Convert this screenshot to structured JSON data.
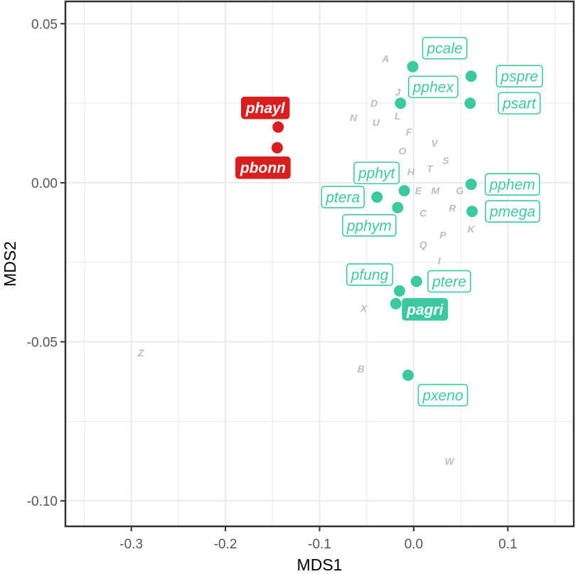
{
  "colors": {
    "teal": "#3dc9a0",
    "red": "#d81e1e",
    "letter_gray": "#bdbdbd",
    "grid": "#ebebeb",
    "panel_border": "#333333"
  },
  "chart_data": {
    "type": "scatter",
    "xlabel": "MDS1",
    "ylabel": "MDS2",
    "xlim": [
      -0.37,
      0.17
    ],
    "ylim": [
      -0.108,
      0.057
    ],
    "x_ticks": [
      {
        "value": -0.3,
        "label": "-0.3"
      },
      {
        "value": -0.2,
        "label": "-0.2"
      },
      {
        "value": -0.1,
        "label": "-0.1"
      },
      {
        "value": 0.0,
        "label": "0.0"
      },
      {
        "value": 0.1,
        "label": "0.1"
      }
    ],
    "y_ticks": [
      {
        "value": 0.05,
        "label": "0.05"
      },
      {
        "value": 0.0,
        "label": "0.00"
      },
      {
        "value": -0.05,
        "label": "-0.05"
      },
      {
        "value": -0.1,
        "label": "-0.10"
      }
    ],
    "grid": true,
    "species": [
      {
        "name": "pcale",
        "x": -0.001,
        "y": 0.0365,
        "group": "teal",
        "style": "outline",
        "dx": 45,
        "dy": -26
      },
      {
        "name": "pspre",
        "x": 0.061,
        "y": 0.0335,
        "group": "teal",
        "style": "outline",
        "dx": 68,
        "dy": 0
      },
      {
        "name": "pphex",
        "x": -0.014,
        "y": 0.025,
        "group": "teal",
        "style": "outline",
        "dx": 46,
        "dy": -23
      },
      {
        "name": "psart",
        "x": 0.06,
        "y": 0.025,
        "group": "teal",
        "style": "outline",
        "dx": 69,
        "dy": 0
      },
      {
        "name": "phayl",
        "x": -0.144,
        "y": 0.0175,
        "group": "red",
        "style": "filled",
        "dx": -18,
        "dy": -27
      },
      {
        "name": "pbonn",
        "x": -0.145,
        "y": 0.011,
        "group": "red",
        "style": "filled",
        "dx": -20,
        "dy": 28
      },
      {
        "name": "pphyt",
        "x": -0.01,
        "y": -0.0025,
        "group": "teal",
        "style": "outline",
        "dx": -39,
        "dy": -25
      },
      {
        "name": "ptera",
        "x": -0.039,
        "y": -0.0045,
        "group": "teal",
        "style": "outline",
        "dx": -48,
        "dy": 0
      },
      {
        "name": "pphem",
        "x": 0.061,
        "y": -0.0005,
        "group": "teal",
        "style": "outline",
        "dx": 58,
        "dy": 0
      },
      {
        "name": "pphym",
        "x": -0.017,
        "y": -0.0078,
        "group": "teal",
        "style": "outline",
        "dx": -40,
        "dy": 25
      },
      {
        "name": "pmega",
        "x": 0.062,
        "y": -0.009,
        "group": "teal",
        "style": "outline",
        "dx": 57,
        "dy": 0
      },
      {
        "name": "pfung",
        "x": -0.015,
        "y": -0.034,
        "group": "teal",
        "style": "outline",
        "dx": -42,
        "dy": -23
      },
      {
        "name": "ptere",
        "x": 0.003,
        "y": -0.031,
        "group": "teal",
        "style": "outline",
        "dx": 46,
        "dy": 0
      },
      {
        "name": "pagri",
        "x": -0.019,
        "y": -0.038,
        "group": "teal",
        "style": "filled",
        "dx": 41,
        "dy": 8
      },
      {
        "name": "pxeno",
        "x": -0.006,
        "y": -0.0605,
        "group": "teal",
        "style": "outline",
        "dx": 49,
        "dy": 28
      }
    ],
    "letters": [
      {
        "label": "A",
        "x": -0.03,
        "y": 0.039
      },
      {
        "label": "J",
        "x": -0.017,
        "y": 0.0285
      },
      {
        "label": "D",
        "x": -0.042,
        "y": 0.025
      },
      {
        "label": "L",
        "x": -0.017,
        "y": 0.021
      },
      {
        "label": "N",
        "x": -0.064,
        "y": 0.0205
      },
      {
        "label": "U",
        "x": -0.04,
        "y": 0.019
      },
      {
        "label": "F",
        "x": -0.005,
        "y": 0.016
      },
      {
        "label": "V",
        "x": 0.022,
        "y": 0.0125
      },
      {
        "label": "O",
        "x": -0.012,
        "y": 0.01
      },
      {
        "label": "S",
        "x": 0.034,
        "y": 0.007
      },
      {
        "label": "H",
        "x": -0.003,
        "y": 0.0035
      },
      {
        "label": "T",
        "x": 0.017,
        "y": 0.0045
      },
      {
        "label": "E",
        "x": 0.005,
        "y": -0.0025
      },
      {
        "label": "M",
        "x": 0.023,
        "y": -0.0025
      },
      {
        "label": "G",
        "x": 0.049,
        "y": -0.0025
      },
      {
        "label": "R",
        "x": 0.041,
        "y": -0.008
      },
      {
        "label": "C",
        "x": 0.01,
        "y": -0.0095
      },
      {
        "label": "K",
        "x": 0.061,
        "y": -0.0145
      },
      {
        "label": "P",
        "x": 0.031,
        "y": -0.0165
      },
      {
        "label": "Q",
        "x": 0.01,
        "y": -0.0195
      },
      {
        "label": "I",
        "x": 0.027,
        "y": -0.0245
      },
      {
        "label": "X",
        "x": -0.053,
        "y": -0.0395
      },
      {
        "label": "Z",
        "x": -0.29,
        "y": -0.0535
      },
      {
        "label": "B",
        "x": -0.056,
        "y": -0.0585
      },
      {
        "label": "W",
        "x": 0.038,
        "y": -0.0875
      }
    ]
  }
}
